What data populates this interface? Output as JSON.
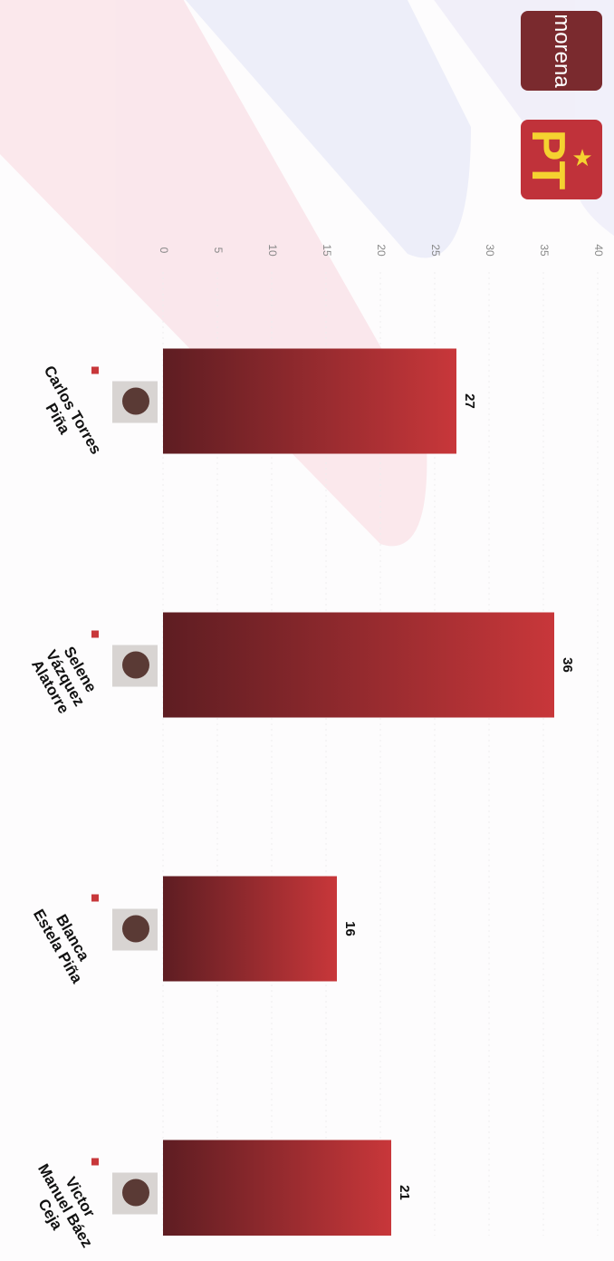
{
  "chart_data": {
    "type": "bar",
    "categories": [
      "Carlos Torres Piña",
      "Selene Vázquez Alatorre",
      "Blanca Estela Piña",
      "Victor Manuel Báez Ceja"
    ],
    "values": [
      27,
      36,
      16,
      21
    ],
    "color": "#c8373a",
    "xlim": [
      0,
      40
    ],
    "xticks": [
      0,
      5,
      10,
      15,
      20,
      25,
      30,
      35,
      40
    ]
  },
  "logos": [
    "morena",
    "PT"
  ]
}
